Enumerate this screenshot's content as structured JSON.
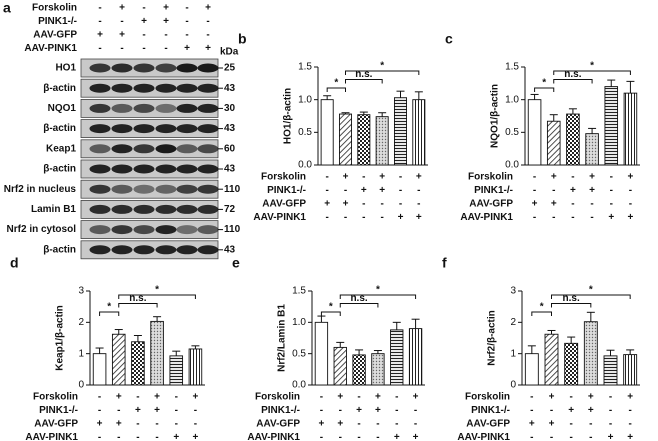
{
  "blot": {
    "panel_label": "a",
    "conditions": [
      {
        "name": "Forskolin",
        "marks": [
          "-",
          "+",
          "-",
          "+",
          "-",
          "+"
        ]
      },
      {
        "name": "PINK1-/-",
        "marks": [
          "-",
          "-",
          "+",
          "+",
          "-",
          "-"
        ]
      },
      {
        "name": "AAV-GFP",
        "marks": [
          "+",
          "+",
          "-",
          "-",
          "-",
          "-"
        ]
      },
      {
        "name": "AAV-PINK1",
        "marks": [
          "-",
          "-",
          "-",
          "-",
          "+",
          "+"
        ]
      }
    ],
    "unit": "kDa",
    "rows": [
      {
        "label": "HO1",
        "kda": "25"
      },
      {
        "label": "β-actin",
        "kda": "43"
      },
      {
        "label": "NQO1",
        "kda": "30"
      },
      {
        "label": "β-actin",
        "kda": "43"
      },
      {
        "label": "Keap1",
        "kda": "60"
      },
      {
        "label": "β-actin",
        "kda": "43"
      },
      {
        "label": "Nrf2 in nucleus",
        "kda": "110"
      },
      {
        "label": "Lamin B1",
        "kda": "72"
      },
      {
        "label": "Nrf2 in cytosol",
        "kda": "110"
      },
      {
        "label": "β-actin",
        "kda": "43"
      }
    ]
  },
  "chart_data": [
    {
      "type": "bar",
      "panel_label": "b",
      "ylabel": "HO1/β-actin",
      "values": [
        1.0,
        0.78,
        0.77,
        0.74,
        1.03,
        1.0
      ],
      "errors": [
        0.06,
        0.02,
        0.04,
        0.06,
        0.1,
        0.12
      ],
      "fills": [
        "white",
        "diagonal",
        "checker",
        "dots",
        "horizontal",
        "vertical"
      ],
      "ylim": [
        0,
        1.5
      ],
      "yticks": [
        {
          "value": 0,
          "label": "0.0"
        },
        {
          "value": 0.5,
          "label": "0.5"
        },
        {
          "value": 1,
          "label": "1.0"
        },
        {
          "value": 1.5,
          "label": "1.5"
        }
      ],
      "annotations": [
        {
          "from": 0,
          "to": 1,
          "text": "*"
        },
        {
          "from": 1,
          "to": 3,
          "text": "n.s."
        },
        {
          "from": 1,
          "to": 5,
          "text": "*"
        }
      ],
      "conditions": [
        {
          "name": "Forskolin",
          "marks": [
            "-",
            "+",
            "-",
            "+",
            "-",
            "+"
          ]
        },
        {
          "name": "PINK1-/-",
          "marks": [
            "-",
            "-",
            "+",
            "+",
            "-",
            "-"
          ]
        },
        {
          "name": "AAV-GFP",
          "marks": [
            "+",
            "+",
            "-",
            "-",
            "-",
            "-"
          ]
        },
        {
          "name": "AAV-PINK1",
          "marks": [
            "-",
            "-",
            "-",
            "-",
            "+",
            "+"
          ]
        }
      ]
    },
    {
      "type": "bar",
      "panel_label": "c",
      "ylabel": "NQO1/β-actin",
      "values": [
        1.0,
        0.67,
        0.78,
        0.48,
        1.2,
        1.1
      ],
      "errors": [
        0.08,
        0.1,
        0.08,
        0.08,
        0.1,
        0.18
      ],
      "fills": [
        "white",
        "diagonal",
        "checker",
        "dots",
        "horizontal",
        "vertical"
      ],
      "ylim": [
        0,
        1.5
      ],
      "yticks": [
        {
          "value": 0,
          "label": "0.0"
        },
        {
          "value": 0.5,
          "label": "0.5"
        },
        {
          "value": 1,
          "label": "1.0"
        },
        {
          "value": 1.5,
          "label": "1.5"
        }
      ],
      "annotations": [
        {
          "from": 0,
          "to": 1,
          "text": "*"
        },
        {
          "from": 1,
          "to": 3,
          "text": "n.s."
        },
        {
          "from": 1,
          "to": 5,
          "text": "*"
        }
      ],
      "conditions": [
        {
          "name": "Forskolin",
          "marks": [
            "-",
            "+",
            "-",
            "+",
            "-",
            "+"
          ]
        },
        {
          "name": "PINK1-/-",
          "marks": [
            "-",
            "-",
            "+",
            "+",
            "-",
            "-"
          ]
        },
        {
          "name": "AAV-GFP",
          "marks": [
            "+",
            "+",
            "-",
            "-",
            "-",
            "-"
          ]
        },
        {
          "name": "AAV-PINK1",
          "marks": [
            "-",
            "-",
            "-",
            "-",
            "+",
            "+"
          ]
        }
      ]
    },
    {
      "type": "bar",
      "panel_label": "d",
      "ylabel": "Keap1/β-actin",
      "values": [
        1.0,
        1.62,
        1.38,
        2.03,
        0.93,
        1.15
      ],
      "errors": [
        0.18,
        0.15,
        0.2,
        0.15,
        0.15,
        0.1
      ],
      "fills": [
        "white",
        "diagonal",
        "checker",
        "dots",
        "horizontal",
        "vertical"
      ],
      "ylim": [
        0,
        3
      ],
      "yticks": [
        0,
        1,
        2,
        3
      ],
      "annotations": [
        {
          "from": 0,
          "to": 1,
          "text": "*"
        },
        {
          "from": 1,
          "to": 3,
          "text": "n.s."
        },
        {
          "from": 1,
          "to": 5,
          "text": "*"
        }
      ],
      "conditions": [
        {
          "name": "Forskolin",
          "marks": [
            "-",
            "+",
            "-",
            "+",
            "-",
            "+"
          ]
        },
        {
          "name": "PINK1-/-",
          "marks": [
            "-",
            "-",
            "+",
            "+",
            "-",
            "-"
          ]
        },
        {
          "name": "AAV-GFP",
          "marks": [
            "+",
            "+",
            "-",
            "-",
            "-",
            "-"
          ]
        },
        {
          "name": "AAV-PINK1",
          "marks": [
            "-",
            "-",
            "-",
            "-",
            "+",
            "+"
          ]
        }
      ]
    },
    {
      "type": "bar",
      "panel_label": "e",
      "ylabel": "Nrf2/Lamin B1",
      "values": [
        1.0,
        0.6,
        0.48,
        0.5,
        0.88,
        0.9
      ],
      "errors": [
        0.1,
        0.08,
        0.08,
        0.05,
        0.12,
        0.15
      ],
      "fills": [
        "white",
        "diagonal",
        "checker",
        "dots",
        "horizontal",
        "vertical"
      ],
      "ylim": [
        0,
        1.5
      ],
      "yticks": [
        {
          "value": 0,
          "label": "0.0"
        },
        {
          "value": 0.5,
          "label": "0.5"
        },
        {
          "value": 1,
          "label": "1.0"
        },
        {
          "value": 1.5,
          "label": "1.5"
        }
      ],
      "annotations": [
        {
          "from": 0,
          "to": 1,
          "text": "*"
        },
        {
          "from": 1,
          "to": 3,
          "text": "n.s."
        },
        {
          "from": 1,
          "to": 5,
          "text": "*"
        }
      ],
      "conditions": [
        {
          "name": "Forskolin",
          "marks": [
            "-",
            "+",
            "-",
            "+",
            "-",
            "+"
          ]
        },
        {
          "name": "PINK1-/-",
          "marks": [
            "-",
            "-",
            "+",
            "+",
            "-",
            "-"
          ]
        },
        {
          "name": "AAV-GFP",
          "marks": [
            "+",
            "+",
            "-",
            "-",
            "-",
            "-"
          ]
        },
        {
          "name": "AAV-PINK1",
          "marks": [
            "-",
            "-",
            "-",
            "-",
            "+",
            "+"
          ]
        }
      ]
    },
    {
      "type": "bar",
      "panel_label": "f",
      "ylabel": "Nrf2/β-actin",
      "values": [
        1.0,
        1.62,
        1.33,
        2.02,
        0.93,
        0.97
      ],
      "errors": [
        0.25,
        0.12,
        0.2,
        0.3,
        0.18,
        0.15
      ],
      "fills": [
        "white",
        "diagonal",
        "checker",
        "dots",
        "horizontal",
        "vertical"
      ],
      "ylim": [
        0,
        3
      ],
      "yticks": [
        0,
        1,
        2,
        3
      ],
      "annotations": [
        {
          "from": 0,
          "to": 1,
          "text": "*"
        },
        {
          "from": 1,
          "to": 3,
          "text": "n.s."
        },
        {
          "from": 1,
          "to": 5,
          "text": "*"
        }
      ],
      "conditions": [
        {
          "name": "Forskolin",
          "marks": [
            "-",
            "+",
            "-",
            "+",
            "-",
            "+"
          ]
        },
        {
          "name": "PINK1-/-",
          "marks": [
            "-",
            "-",
            "+",
            "+",
            "-",
            "-"
          ]
        },
        {
          "name": "AAV-GFP",
          "marks": [
            "+",
            "+",
            "-",
            "-",
            "-",
            "-"
          ]
        },
        {
          "name": "AAV-PINK1",
          "marks": [
            "-",
            "-",
            "-",
            "-",
            "+",
            "+"
          ]
        }
      ]
    }
  ]
}
